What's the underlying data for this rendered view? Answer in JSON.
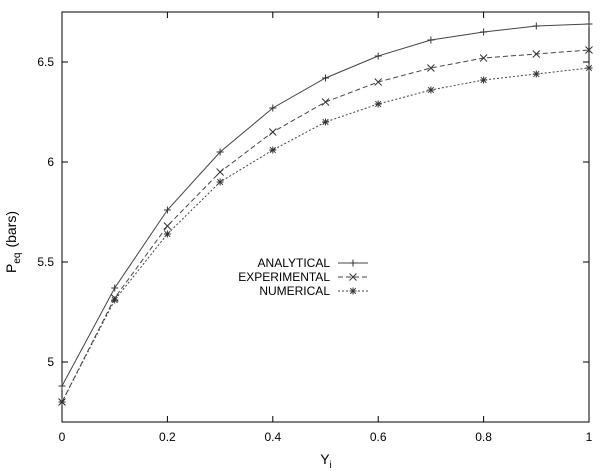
{
  "chart_data": {
    "type": "line",
    "title": "",
    "xlabel": "Y",
    "xlabel_sub": "i",
    "ylabel": "P",
    "ylabel_sub": "eq",
    "ylabel_unit": "(bars)",
    "xlim": [
      0,
      1
    ],
    "ylim": [
      4.7,
      6.75
    ],
    "grid": false,
    "legend_position": "center",
    "x": [
      0,
      0.1,
      0.2,
      0.3,
      0.4,
      0.5,
      0.6,
      0.7,
      0.8,
      0.9,
      1.0
    ],
    "x_ticks": [
      "0",
      "0.2",
      "0.4",
      "0.6",
      "0.8",
      "1"
    ],
    "x_tick_values": [
      0,
      0.2,
      0.4,
      0.6,
      0.8,
      1
    ],
    "y_ticks": [
      "5",
      "5.5",
      "6",
      "6.5"
    ],
    "y_tick_values": [
      5,
      5.5,
      6,
      6.5
    ],
    "series": [
      {
        "name": "ANALYTICAL",
        "line_style": "solid",
        "marker": "plus",
        "values": [
          4.88,
          5.37,
          5.76,
          6.05,
          6.27,
          6.42,
          6.53,
          6.61,
          6.65,
          6.68,
          6.69
        ]
      },
      {
        "name": "EXPERIMENTAL",
        "line_style": "dashed",
        "marker": "x",
        "values": [
          4.8,
          5.32,
          5.68,
          5.95,
          6.15,
          6.3,
          6.4,
          6.47,
          6.52,
          6.54,
          6.56
        ]
      },
      {
        "name": "NUMERICAL",
        "line_style": "dotted",
        "marker": "asterisk",
        "values": [
          4.8,
          5.31,
          5.64,
          5.9,
          6.06,
          6.2,
          6.29,
          6.36,
          6.41,
          6.44,
          6.47
        ]
      }
    ]
  }
}
